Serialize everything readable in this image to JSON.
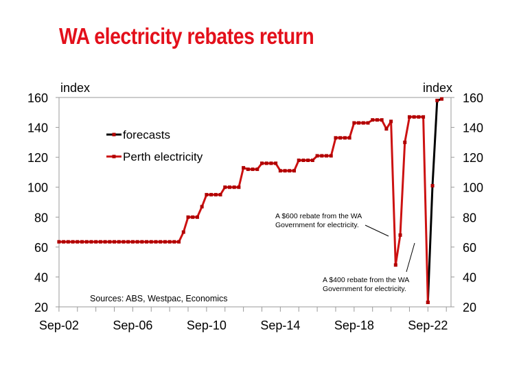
{
  "title": "WA electricity rebates return",
  "chart_data": {
    "type": "line",
    "title": "WA electricity rebates return",
    "ylabel_left": "index",
    "ylabel_right": "index",
    "ylim": [
      20,
      160
    ],
    "yticks": [
      20,
      40,
      60,
      80,
      100,
      120,
      140,
      160
    ],
    "x_tick_labels": [
      "Sep-02",
      "Sep-06",
      "Sep-10",
      "Sep-14",
      "Sep-18",
      "Sep-22"
    ],
    "x_range_years": [
      2002.67,
      2023.92
    ],
    "grid": false,
    "legend_position": "top-left",
    "source_note": "Sources: ABS, Westpac, Economics",
    "annotations": [
      "A $600 rebate from the WA Government for electricity.",
      "A $400 rebate from the WA Government for electricity."
    ],
    "series": [
      {
        "name": "Perth electricity",
        "color": "#cc1111",
        "marker_color": "#b00000",
        "x": [
          "Sep-02",
          "Dec-02",
          "Mar-03",
          "Jun-03",
          "Sep-03",
          "Dec-03",
          "Mar-04",
          "Jun-04",
          "Sep-04",
          "Dec-04",
          "Mar-05",
          "Jun-05",
          "Sep-05",
          "Dec-05",
          "Mar-06",
          "Jun-06",
          "Sep-06",
          "Dec-06",
          "Mar-07",
          "Jun-07",
          "Sep-07",
          "Dec-07",
          "Mar-08",
          "Jun-08",
          "Sep-08",
          "Dec-08",
          "Mar-09",
          "Jun-09",
          "Sep-09",
          "Dec-09",
          "Mar-10",
          "Jun-10",
          "Sep-10",
          "Dec-10",
          "Mar-11",
          "Jun-11",
          "Sep-11",
          "Dec-11",
          "Mar-12",
          "Jun-12",
          "Sep-12",
          "Dec-12",
          "Mar-13",
          "Jun-13",
          "Sep-13",
          "Dec-13",
          "Mar-14",
          "Jun-14",
          "Sep-14",
          "Dec-14",
          "Mar-15",
          "Jun-15",
          "Sep-15",
          "Dec-15",
          "Mar-16",
          "Jun-16",
          "Sep-16",
          "Dec-16",
          "Mar-17",
          "Jun-17",
          "Sep-17",
          "Dec-17",
          "Mar-18",
          "Jun-18",
          "Sep-18",
          "Dec-18",
          "Mar-19",
          "Jun-19",
          "Sep-19",
          "Dec-19",
          "Mar-20",
          "Jun-20",
          "Sep-20",
          "Dec-20",
          "Mar-21",
          "Jun-21",
          "Sep-21",
          "Dec-21",
          "Mar-22",
          "Jun-22",
          "Sep-22"
        ],
        "values": [
          63.5,
          63.5,
          63.5,
          63.5,
          63.5,
          63.5,
          63.5,
          63.5,
          63.5,
          63.5,
          63.5,
          63.5,
          63.5,
          63.5,
          63.5,
          63.5,
          63.5,
          63.5,
          63.5,
          63.5,
          63.5,
          63.5,
          63.5,
          63.5,
          63.5,
          63.5,
          63.5,
          70,
          80,
          80,
          80,
          87,
          95,
          95,
          95,
          95,
          100,
          100,
          100,
          100,
          113,
          112,
          112,
          112,
          116,
          116,
          116,
          116,
          111,
          111,
          111,
          111,
          118,
          118,
          118,
          118,
          121,
          121,
          121,
          121,
          133,
          133,
          133,
          133,
          143,
          143,
          143,
          143,
          145,
          145,
          145,
          139,
          144,
          48,
          68,
          130,
          147,
          147,
          147,
          147,
          23
        ]
      },
      {
        "name": "forecasts",
        "color": "#000000",
        "marker_color": "#b00000",
        "x": [
          "Sep-22",
          "Dec-22",
          "Mar-23",
          "Jun-23"
        ],
        "values": [
          23,
          101,
          158,
          159
        ]
      }
    ]
  }
}
